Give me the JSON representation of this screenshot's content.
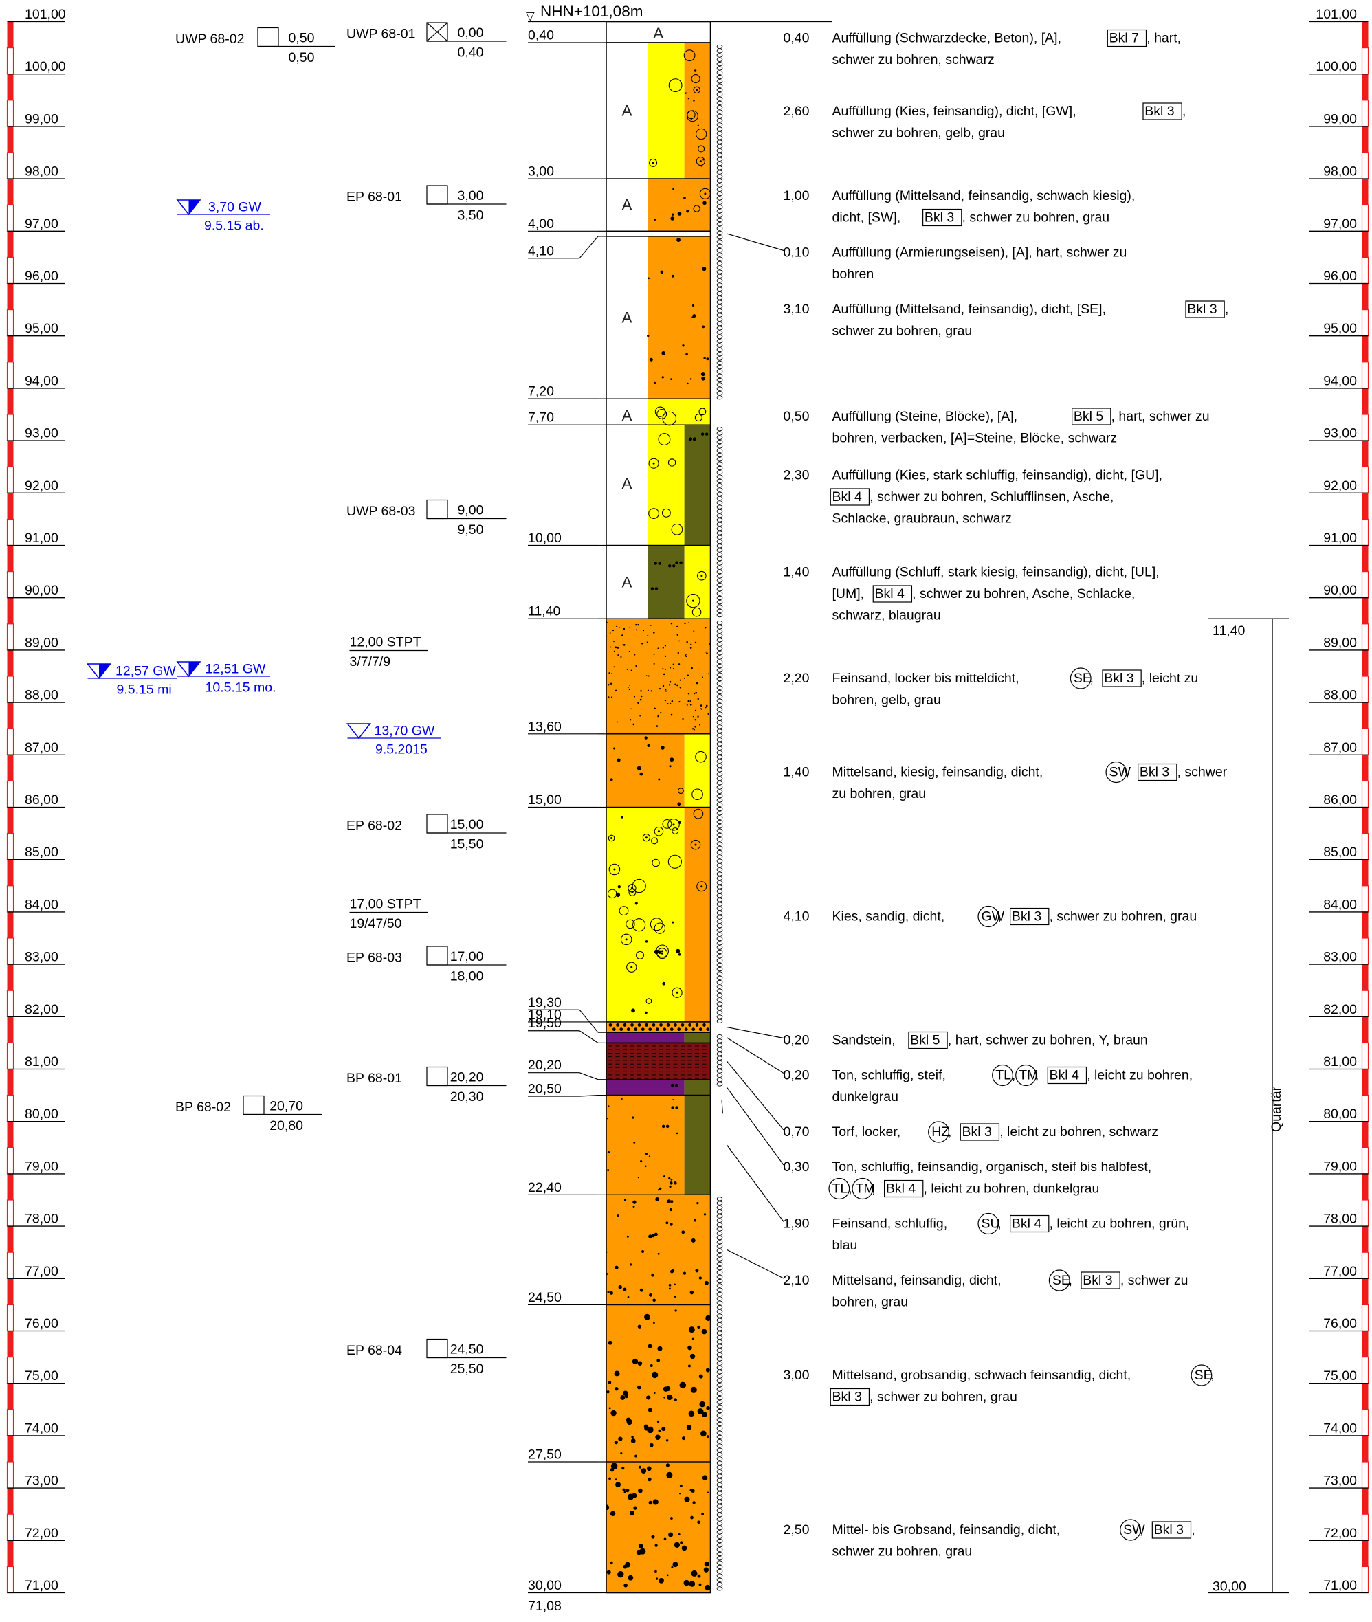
{
  "reference": {
    "marker": "▽",
    "label": "NHN+101,08m",
    "bottom_elevation": "71,08"
  },
  "scale": {
    "top_elevation": 101.0,
    "labels": [
      "101,00",
      "100,00",
      "99,00",
      "98,00",
      "97,00",
      "96,00",
      "95,00",
      "94,00",
      "93,00",
      "92,00",
      "91,00",
      "90,00",
      "89,00",
      "88,00",
      "87,00",
      "86,00",
      "85,00",
      "84,00",
      "83,00",
      "82,00",
      "81,00",
      "80,00",
      "79,00",
      "78,00",
      "77,00",
      "76,00",
      "75,00",
      "74,00",
      "73,00",
      "72,00",
      "71,00"
    ],
    "bar_color": "#ee1c1c"
  },
  "colors": {
    "orange": "#ff9a00",
    "yellow": "#ffff00",
    "olive": "#5e6214",
    "purple": "#70147e",
    "darkred": "#7b1111",
    "fill": "#ffffff",
    "water": "#0000e6",
    "line": "#000000"
  },
  "layers": [
    {
      "top": 0.0,
      "bottom": 0.4,
      "top_label": "",
      "bottom_label": "0,40",
      "thickness": "0,40",
      "pattern": "fill-a",
      "colors": [
        "fill"
      ],
      "description": [
        [
          {
            "t": "Auffüllung (Schwarzdecke, Beton), [A], "
          },
          {
            "t": "Bkl 7",
            "box": true
          },
          {
            "t": ", hart,"
          }
        ],
        [
          {
            "t": "schwer zu bohren, schwarz"
          }
        ]
      ]
    },
    {
      "top": 0.4,
      "bottom": 3.0,
      "top_label": "",
      "bottom_label": "3,00",
      "thickness": "2,60",
      "pattern": "fill-gravel",
      "colors": [
        "fill",
        "yellow",
        "orange"
      ],
      "description": [
        [
          {
            "t": "Auffüllung (Kies, feinsandig), dicht, [GW], "
          },
          {
            "t": "Bkl 3",
            "box": true
          },
          {
            "t": ","
          }
        ],
        [
          {
            "t": "schwer zu bohren, gelb, grau"
          }
        ]
      ]
    },
    {
      "top": 3.0,
      "bottom": 4.0,
      "top_label": "",
      "bottom_label": "4,00",
      "thickness": "1,00",
      "pattern": "fill-sand",
      "colors": [
        "fill",
        "orange"
      ],
      "description": [
        [
          {
            "t": "Auffüllung (Mittelsand, feinsandig, schwach kiesig),"
          }
        ],
        [
          {
            "t": "dicht, [SW], "
          },
          {
            "t": "Bkl 3",
            "box": true
          },
          {
            "t": ", schwer zu bohren, grau"
          }
        ]
      ]
    },
    {
      "top": 4.0,
      "bottom": 4.1,
      "top_label": "",
      "bottom_label": "4,10",
      "thickness": "0,10",
      "pattern": "fill-thin",
      "colors": [
        "fill"
      ],
      "description": [
        [
          {
            "t": "Auffüllung (Armierungseisen), [A], hart, schwer zu"
          }
        ],
        [
          {
            "t": "bohren"
          }
        ]
      ]
    },
    {
      "top": 4.1,
      "bottom": 7.2,
      "top_label": "",
      "bottom_label": "7,20",
      "thickness": "3,10",
      "pattern": "fill-sand",
      "colors": [
        "fill",
        "orange"
      ],
      "description": [
        [
          {
            "t": "Auffüllung (Mittelsand, feinsandig), dicht, [SE], "
          },
          {
            "t": "Bkl 3",
            "box": true
          },
          {
            "t": ","
          }
        ],
        [
          {
            "t": "schwer zu bohren, grau"
          }
        ]
      ]
    },
    {
      "top": 7.2,
      "bottom": 7.7,
      "top_label": "",
      "bottom_label": "7,70",
      "thickness": "0,50",
      "pattern": "fill-stones",
      "colors": [
        "fill",
        "yellow"
      ],
      "description": [
        [
          {
            "t": "Auffüllung (Steine, Blöcke), [A], "
          },
          {
            "t": "Bkl 5",
            "box": true
          },
          {
            "t": ", hart, schwer zu"
          }
        ],
        [
          {
            "t": "bohren, verbacken, [A]=Steine, Blöcke, schwarz"
          }
        ]
      ]
    },
    {
      "top": 7.7,
      "bottom": 10.0,
      "top_label": "",
      "bottom_label": "10,00",
      "thickness": "2,30",
      "pattern": "fill-gravel-silt",
      "colors": [
        "fill",
        "yellow",
        "olive"
      ],
      "description": [
        [
          {
            "t": "Auffüllung (Kies, stark schluffig, feinsandig), dicht, [GU],"
          }
        ],
        [
          {
            "t": "Bkl 4",
            "box": true
          },
          {
            "t": ", schwer zu bohren, Schlufflinsen, Asche,"
          }
        ],
        [
          {
            "t": "Schlacke, graubraun, schwarz"
          }
        ]
      ]
    },
    {
      "top": 10.0,
      "bottom": 11.4,
      "top_label": "",
      "bottom_label": "11,40",
      "thickness": "1,40",
      "pattern": "fill-silt-gravel",
      "colors": [
        "fill",
        "olive",
        "yellow"
      ],
      "description": [
        [
          {
            "t": "Auffüllung (Schluff, stark kiesig, feinsandig), dicht, [UL],"
          }
        ],
        [
          {
            "t": "[UM], "
          },
          {
            "t": "Bkl 4",
            "box": true
          },
          {
            "t": ", schwer zu bohren, Asche, Schlacke,"
          }
        ],
        [
          {
            "t": "schwarz, blaugrau"
          }
        ]
      ]
    },
    {
      "top": 11.4,
      "bottom": 13.6,
      "top_label": "",
      "bottom_label": "13,60",
      "thickness": "2,20",
      "pattern": "fine-sand",
      "colors": [
        "orange"
      ],
      "description": [
        [
          {
            "t": "Feinsand, locker bis mitteldicht, "
          },
          {
            "t": "SE",
            "circle": true
          },
          {
            "t": ", "
          },
          {
            "t": "Bkl 3",
            "box": true
          },
          {
            "t": ", leicht zu"
          }
        ],
        [
          {
            "t": "bohren, gelb, grau"
          }
        ]
      ]
    },
    {
      "top": 13.6,
      "bottom": 15.0,
      "top_label": "",
      "bottom_label": "15,00",
      "thickness": "1,40",
      "pattern": "sand-gravel",
      "colors": [
        "orange",
        "yellow"
      ],
      "description": [
        [
          {
            "t": "Mittelsand, kiesig, feinsandig, dicht, "
          },
          {
            "t": "SW",
            "circle": true
          },
          {
            "t": ", "
          },
          {
            "t": "Bkl 3",
            "box": true
          },
          {
            "t": ", schwer"
          }
        ],
        [
          {
            "t": "zu bohren, grau"
          }
        ]
      ]
    },
    {
      "top": 15.0,
      "bottom": 19.1,
      "top_label": "",
      "bottom_label": "19,10",
      "thickness": "4,10",
      "pattern": "gravel-sand",
      "colors": [
        "yellow",
        "orange"
      ],
      "description": [
        [
          {
            "t": "Kies, sandig, dicht, "
          },
          {
            "t": "GW",
            "circle": true
          },
          {
            "t": ", "
          },
          {
            "t": "Bkl 3",
            "box": true
          },
          {
            "t": ", schwer zu bohren, grau"
          }
        ]
      ]
    },
    {
      "top": 19.1,
      "bottom": 19.3,
      "top_label": "",
      "bottom_label": "19,30",
      "thickness": "0,20",
      "pattern": "sandstone",
      "colors": [
        "orange"
      ],
      "description": [
        [
          {
            "t": "Sandstein, "
          },
          {
            "t": "Bkl 5",
            "box": true
          },
          {
            "t": ", hart, schwer zu bohren, Y, braun"
          }
        ]
      ]
    },
    {
      "top": 19.3,
      "bottom": 19.5,
      "top_label": "",
      "bottom_label": "19,50",
      "thickness": "0,20",
      "pattern": "clay-silt",
      "colors": [
        "purple",
        "olive"
      ],
      "description": [
        [
          {
            "t": "Ton, schluffig, steif, "
          },
          {
            "t": "TL",
            "circle": true
          },
          {
            "t": ","
          },
          {
            "t": "TM",
            "circle": true
          },
          {
            "t": ", "
          },
          {
            "t": "Bkl 4",
            "box": true
          },
          {
            "t": ", leicht zu bohren,"
          }
        ],
        [
          {
            "t": "dunkelgrau"
          }
        ]
      ]
    },
    {
      "top": 19.5,
      "bottom": 20.2,
      "top_label": "",
      "bottom_label": "20,20",
      "thickness": "0,70",
      "pattern": "peat",
      "colors": [
        "darkred"
      ],
      "description": [
        [
          {
            "t": "Torf, locker, "
          },
          {
            "t": "HZ",
            "circle": true
          },
          {
            "t": ", "
          },
          {
            "t": "Bkl 3",
            "box": true
          },
          {
            "t": ", leicht zu bohren, schwarz"
          }
        ]
      ]
    },
    {
      "top": 20.2,
      "bottom": 20.5,
      "top_label": "",
      "bottom_label": "20,50",
      "thickness": "0,30",
      "pattern": "clay-organic",
      "colors": [
        "purple",
        "olive"
      ],
      "description": [
        [
          {
            "t": "Ton, schluffig, feinsandig, organisch, steif bis halbfest,"
          }
        ],
        [
          {
            "t": "TL",
            "circle": true
          },
          {
            "t": ","
          },
          {
            "t": "TM",
            "circle": true
          },
          {
            "t": ", "
          },
          {
            "t": "Bkl 4",
            "box": true
          },
          {
            "t": ", leicht zu bohren, dunkelgrau"
          }
        ]
      ]
    },
    {
      "top": 20.5,
      "bottom": 22.4,
      "top_label": "",
      "bottom_label": "22,40",
      "thickness": "1,90",
      "pattern": "sand-silt",
      "colors": [
        "orange",
        "olive"
      ],
      "description": [
        [
          {
            "t": "Feinsand, schluffig, "
          },
          {
            "t": "SU",
            "circle": true
          },
          {
            "t": ", "
          },
          {
            "t": "Bkl 4",
            "box": true
          },
          {
            "t": ", leicht zu bohren, grün,"
          }
        ],
        [
          {
            "t": "blau"
          }
        ]
      ]
    },
    {
      "top": 22.4,
      "bottom": 24.5,
      "top_label": "",
      "bottom_label": "24,50",
      "thickness": "2,10",
      "pattern": "mid-sand",
      "colors": [
        "orange"
      ],
      "description": [
        [
          {
            "t": "Mittelsand, feinsandig, dicht, "
          },
          {
            "t": "SE",
            "circle": true
          },
          {
            "t": ", "
          },
          {
            "t": "Bkl 3",
            "box": true
          },
          {
            "t": ", schwer zu"
          }
        ],
        [
          {
            "t": "bohren, grau"
          }
        ]
      ]
    },
    {
      "top": 24.5,
      "bottom": 27.5,
      "top_label": "",
      "bottom_label": "27,50",
      "thickness": "3,00",
      "pattern": "coarse-sand",
      "colors": [
        "orange"
      ],
      "description": [
        [
          {
            "t": "Mittelsand, grobsandig, schwach feinsandig, dicht, "
          },
          {
            "t": "SE",
            "circle": true
          },
          {
            "t": ","
          }
        ],
        [
          {
            "t": "Bkl 3",
            "box": true
          },
          {
            "t": ", schwer zu bohren, grau"
          }
        ]
      ]
    },
    {
      "top": 27.5,
      "bottom": 30.0,
      "top_label": "",
      "bottom_label": "30,00",
      "thickness": "2,50",
      "pattern": "coarse-sand",
      "colors": [
        "orange"
      ],
      "description": [
        [
          {
            "t": "Mittel- bis Grobsand, feinsandig, dicht, "
          },
          {
            "t": "SW",
            "circle": true
          },
          {
            "t": ", "
          },
          {
            "t": "Bkl 3",
            "box": true
          },
          {
            "t": ","
          }
        ],
        [
          {
            "t": "schwer zu bohren, grau"
          }
        ]
      ]
    }
  ],
  "first_depth_label": "0,40",
  "stratigraphy": {
    "label": "Quartär",
    "top": "11,40",
    "bottom": "30,00"
  },
  "samples_left": [
    {
      "name": "UWP 68-02",
      "top": "0,50",
      "bottom": "0,50"
    },
    {
      "name": "BP 68-02",
      "top": "20,70",
      "bottom": "20,80"
    }
  ],
  "samples_mid": [
    {
      "name": "UWP 68-01",
      "top": "0,00",
      "bottom": "0,40",
      "crossed": true
    },
    {
      "name": "EP 68-01",
      "top": "3,00",
      "bottom": "3,50"
    },
    {
      "name": "UWP 68-03",
      "top": "9,00",
      "bottom": "9,50"
    },
    {
      "name": "EP 68-02",
      "top": "15,00",
      "bottom": "15,50"
    },
    {
      "name": "EP 68-03",
      "top": "17,00",
      "bottom": "18,00"
    },
    {
      "name": "BP 68-01",
      "top": "20,20",
      "bottom": "20,30"
    },
    {
      "name": "EP 68-04",
      "top": "24,50",
      "bottom": "25,50"
    }
  ],
  "spt": [
    {
      "label": "12,00 STPT",
      "blows": "3/7/7/9"
    },
    {
      "label": "17,00 STPT",
      "blows": "19/47/50"
    }
  ],
  "groundwater": [
    {
      "level": "3,70 GW",
      "date": "9.5.15 ab.",
      "filled": true
    },
    {
      "level": "12,57 GW",
      "date": "9.5.15 mi",
      "filled": true
    },
    {
      "level": "12,51 GW",
      "date": "10.5.15 mo.",
      "filled": true
    },
    {
      "level": "13,70 GW",
      "date": "9.5.2015",
      "filled": false
    }
  ]
}
